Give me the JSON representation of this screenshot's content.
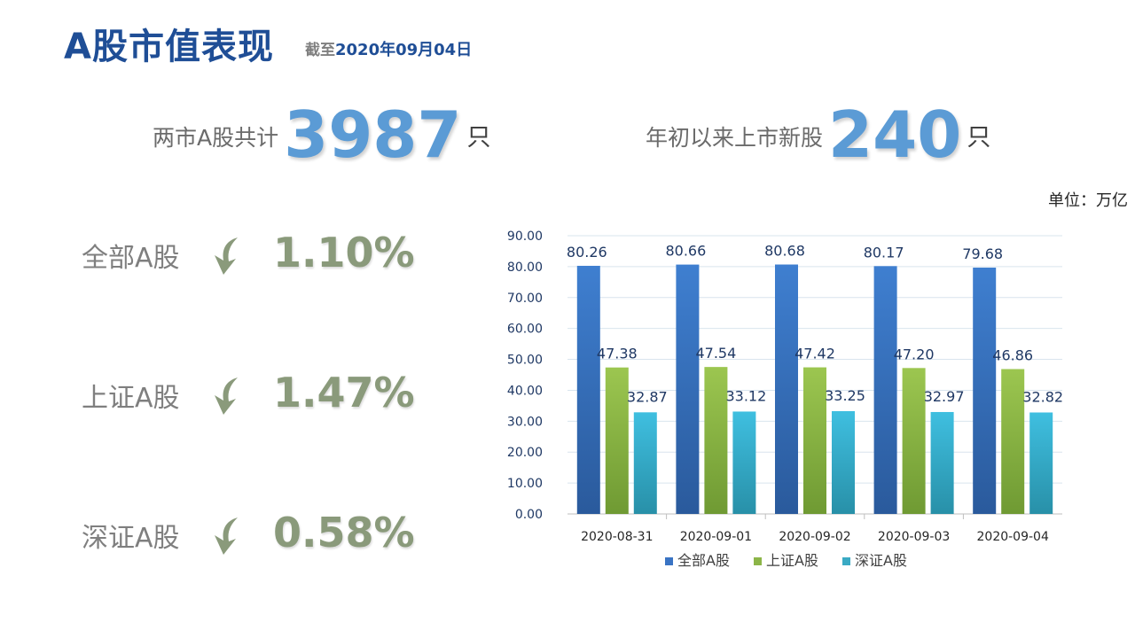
{
  "header": {
    "title": "A股市值表现",
    "subtitle_prefix": "截至",
    "subtitle_date": "2020年09月04日"
  },
  "stats": {
    "total": {
      "label": "两市A股共计",
      "value": "3987",
      "unit": "只"
    },
    "new": {
      "label": "年初以来上市新股",
      "value": "240",
      "unit": "只"
    }
  },
  "changes": [
    {
      "name": "全部A股",
      "pct": "1.10%",
      "icon": "down-arrow-icon"
    },
    {
      "name": "上证A股",
      "pct": "1.47%",
      "icon": "down-arrow-icon"
    },
    {
      "name": "深证A股",
      "pct": "0.58%",
      "icon": "down-arrow-icon"
    }
  ],
  "unit_label": "单位：万亿",
  "colors": {
    "title": "#1f4e96",
    "number": "#5b9bd5",
    "change": "#8a9a7b",
    "series_all": "#3a74c4",
    "series_sh": "#8cb548",
    "series_sz": "#3aaac4"
  },
  "chart_data": {
    "type": "bar",
    "categories": [
      "2020-08-31",
      "2020-09-01",
      "2020-09-02",
      "2020-09-03",
      "2020-09-04"
    ],
    "series": [
      {
        "name": "全部A股",
        "values": [
          80.26,
          80.66,
          80.68,
          80.17,
          79.68
        ]
      },
      {
        "name": "上证A股",
        "values": [
          47.38,
          47.54,
          47.42,
          47.2,
          46.86
        ]
      },
      {
        "name": "深证A股",
        "values": [
          32.87,
          33.12,
          33.25,
          32.97,
          32.82
        ]
      }
    ],
    "ylim": [
      0,
      90
    ],
    "yticks": [
      "0.00",
      "10.00",
      "20.00",
      "30.00",
      "40.00",
      "50.00",
      "60.00",
      "70.00",
      "80.00",
      "90.00"
    ],
    "grid": true,
    "legend": "bottom"
  }
}
